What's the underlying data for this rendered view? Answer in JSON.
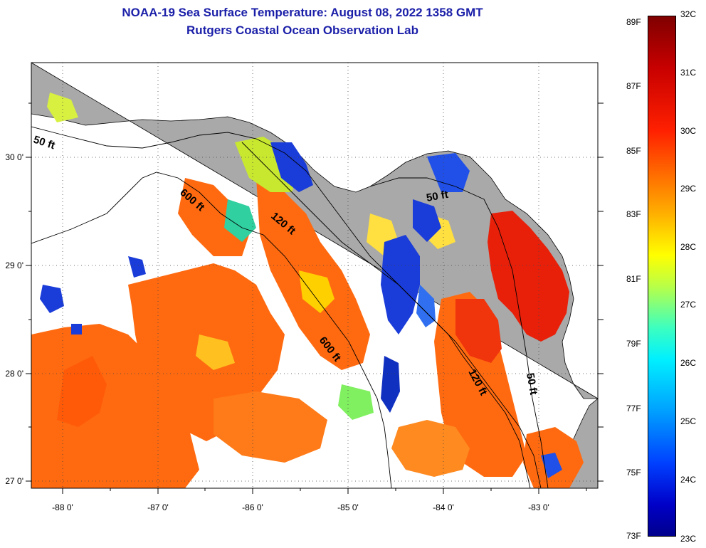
{
  "title": {
    "line1": "NOAA-19 Sea Surface Temperature:  August 08, 2022 1358 GMT",
    "line2": "Rutgers Coastal Ocean Observation Lab"
  },
  "map": {
    "lon_labels": [
      "-88 0'",
      "-87 0'",
      "-86 0'",
      "-85 0'",
      "-84 0'",
      "-83 0'"
    ],
    "lat_labels": [
      "30 0'",
      "29 0'",
      "28 0'",
      "27 0'"
    ],
    "contour_labels": [
      "50 ft",
      "600 ft",
      "120 ft",
      "50 ft",
      "600 ft",
      "120 ft",
      "50 ft"
    ],
    "colors": {
      "land": "#a9a9a9",
      "cloud_nodata": "#ffffff",
      "warm_water": "#ff6a10",
      "hot_water": "#e8200a",
      "cool_water": "#1a3cd8"
    }
  },
  "colorbar": {
    "fahrenheit": [
      "89F",
      "87F",
      "85F",
      "83F",
      "81F",
      "79F",
      "77F",
      "75F",
      "73F"
    ],
    "celsius": [
      "32C",
      "31C",
      "30C",
      "29C",
      "28C",
      "27C",
      "26C",
      "25C",
      "24C",
      "23C"
    ]
  }
}
